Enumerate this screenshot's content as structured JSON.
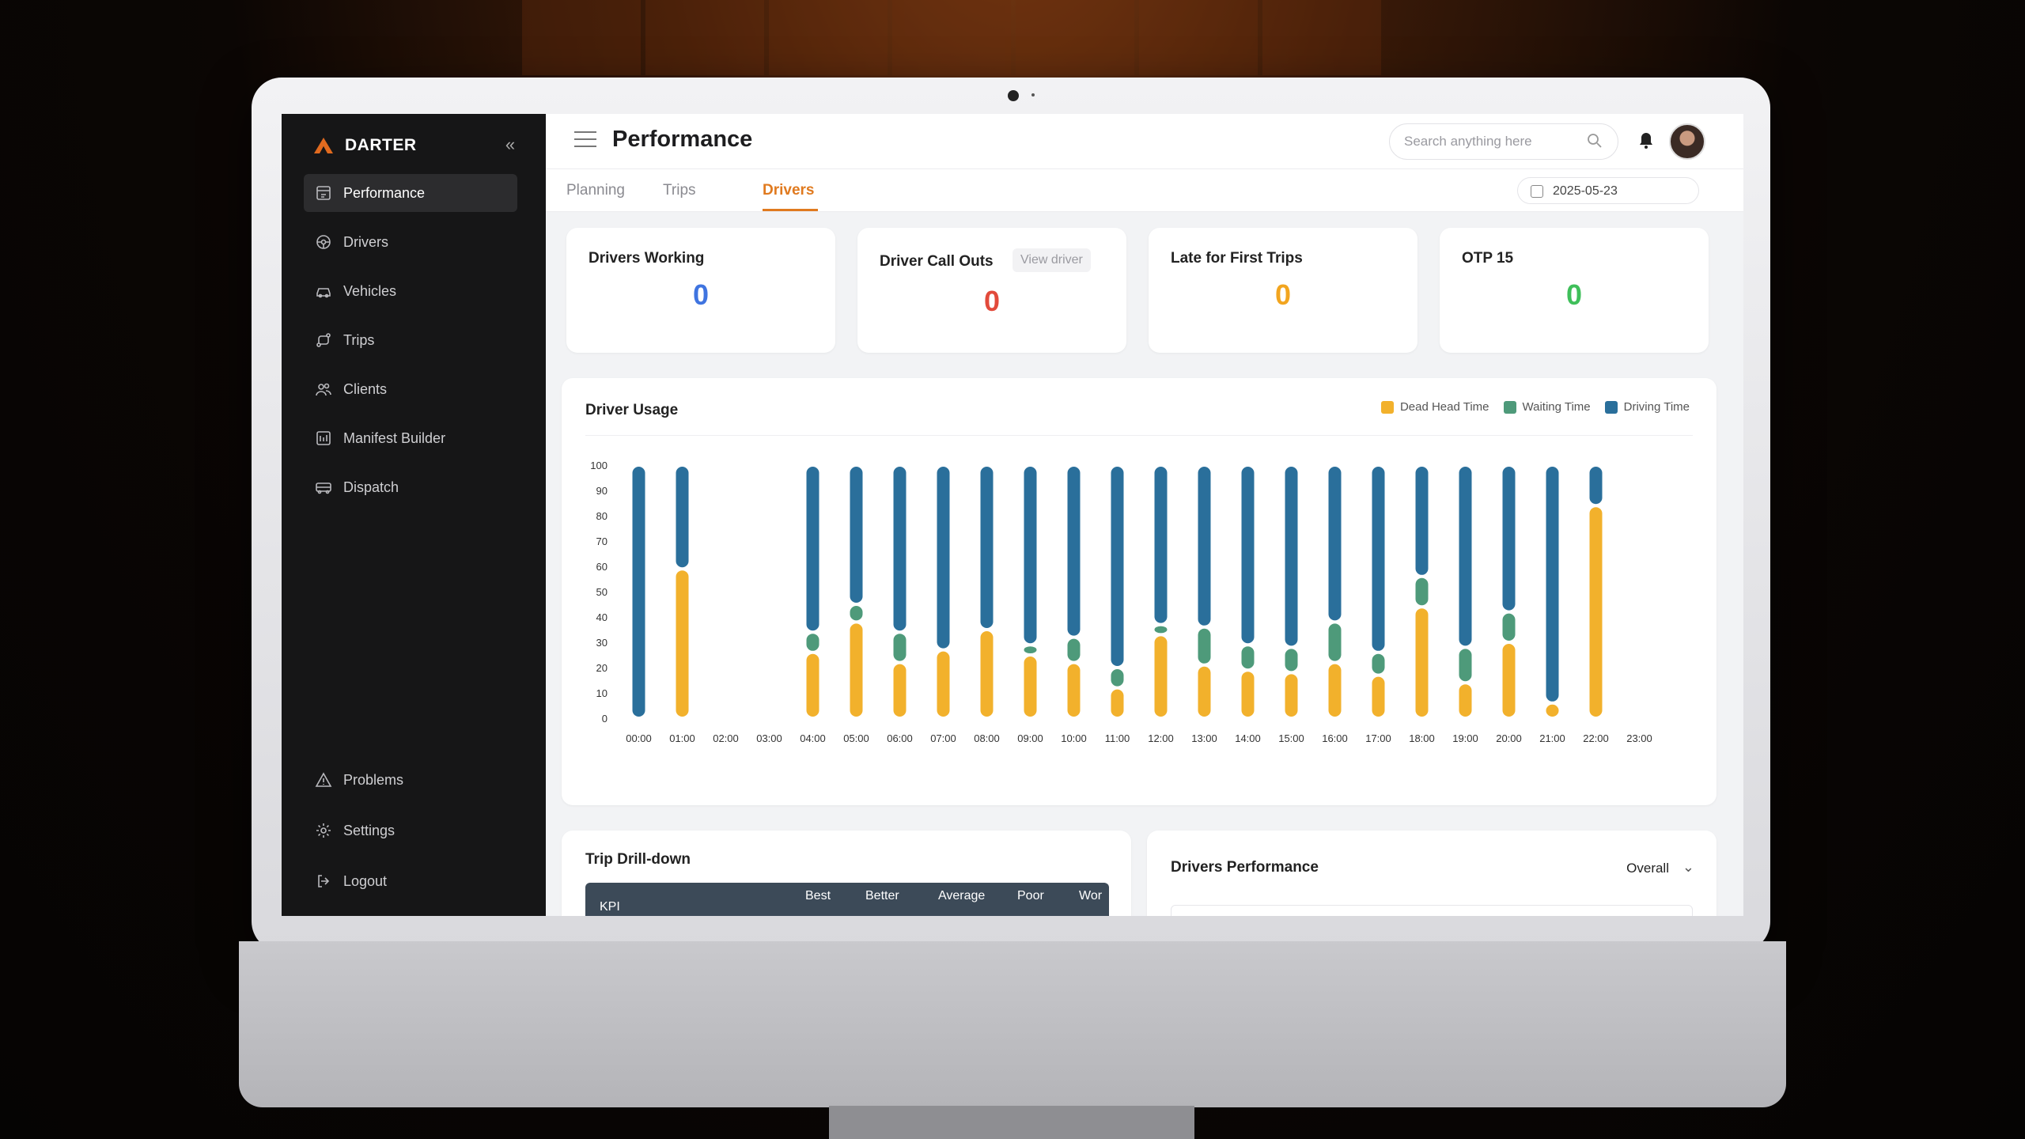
{
  "app": {
    "brand": "DARTER",
    "page_title": "Performance"
  },
  "sidebar": {
    "items": [
      {
        "label": "Performance",
        "icon": "performance-icon",
        "active": true
      },
      {
        "label": "Drivers",
        "icon": "steering-wheel-icon"
      },
      {
        "label": "Vehicles",
        "icon": "car-icon"
      },
      {
        "label": "Trips",
        "icon": "route-icon"
      },
      {
        "label": "Clients",
        "icon": "users-icon"
      },
      {
        "label": "Manifest Builder",
        "icon": "manifest-icon"
      },
      {
        "label": "Dispatch",
        "icon": "bus-icon"
      }
    ],
    "bottom_items": [
      {
        "label": "Problems",
        "icon": "warning-icon"
      },
      {
        "label": "Settings",
        "icon": "gear-icon"
      },
      {
        "label": "Logout",
        "icon": "logout-icon"
      }
    ]
  },
  "header": {
    "search_placeholder": "Search anything here"
  },
  "tabs": [
    {
      "label": "Planning"
    },
    {
      "label": "Trips"
    },
    {
      "label": "Drivers",
      "active": true
    }
  ],
  "date": "2025-05-23",
  "kpis": [
    {
      "title": "Drivers Working",
      "value": "0",
      "color": "#3f74e0"
    },
    {
      "title": "Driver Call Outs",
      "value": "0",
      "color": "#e24a3b",
      "action": "View driver"
    },
    {
      "title": "Late for First Trips",
      "value": "0",
      "color": "#f2a51f"
    },
    {
      "title": "OTP 15",
      "value": "0",
      "color": "#3fbf5a"
    }
  ],
  "driver_usage": {
    "title": "Driver Usage"
  },
  "chart_data": {
    "type": "bar",
    "stacked": true,
    "categories": [
      "00:00",
      "01:00",
      "02:00",
      "03:00",
      "04:00",
      "05:00",
      "06:00",
      "07:00",
      "08:00",
      "09:00",
      "10:00",
      "11:00",
      "12:00",
      "13:00",
      "14:00",
      "15:00",
      "16:00",
      "17:00",
      "18:00",
      "19:00",
      "20:00",
      "21:00",
      "22:00",
      "23:00"
    ],
    "series": [
      {
        "name": "Dead Head Time",
        "color": "#f2b12c",
        "values": [
          0,
          59,
          0,
          0,
          26,
          38,
          22,
          27,
          35,
          25,
          22,
          12,
          33,
          21,
          19,
          18,
          22,
          17,
          44,
          14,
          30,
          6,
          84,
          0
        ]
      },
      {
        "name": "Waiting Time",
        "color": "#4e9a7a",
        "values": [
          0,
          0,
          0,
          0,
          8,
          7,
          12,
          0,
          0,
          4,
          10,
          8,
          4,
          15,
          10,
          10,
          16,
          9,
          12,
          14,
          12,
          0,
          0,
          0
        ]
      },
      {
        "name": "Driving Time",
        "color": "#2a6f9b",
        "values": [
          100,
          41,
          0,
          0,
          66,
          55,
          66,
          73,
          65,
          71,
          68,
          80,
          63,
          64,
          71,
          72,
          62,
          74,
          44,
          72,
          58,
          94,
          16,
          0
        ]
      }
    ],
    "ylim": [
      0,
      100
    ],
    "yticks": [
      0,
      10,
      20,
      30,
      40,
      50,
      60,
      70,
      80,
      90,
      100
    ],
    "legend": "top-right",
    "grid": false
  },
  "trip_drilldown": {
    "title": "Trip Drill-down",
    "columns": [
      "KPI",
      "Best",
      "Better",
      "Average",
      "Poor",
      "Wor"
    ]
  },
  "drivers_performance": {
    "title": "Drivers Performance",
    "filter": "Overall"
  }
}
